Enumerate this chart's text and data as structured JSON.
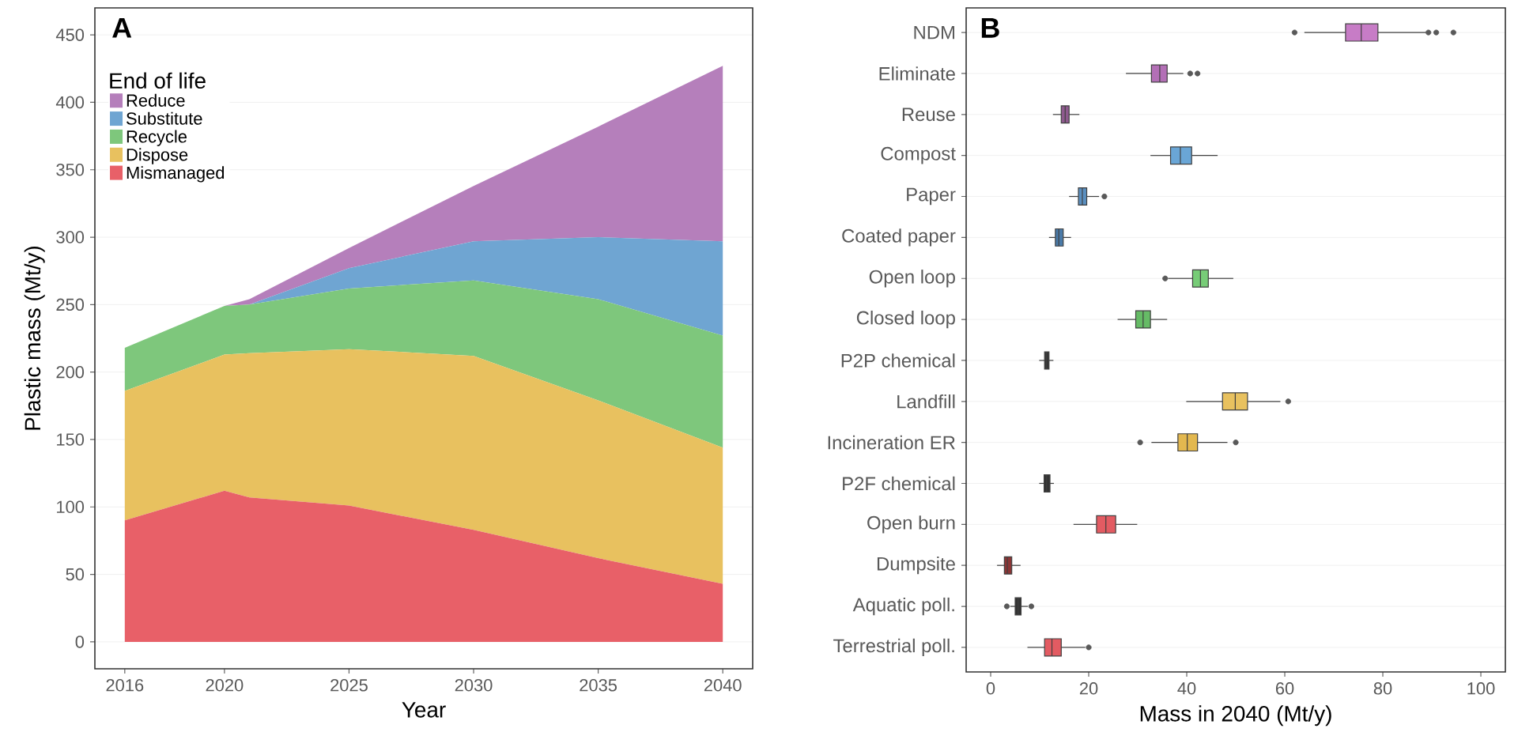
{
  "chart_data": [
    {
      "type": "area",
      "title": "A",
      "stacked": true,
      "xlabel": "Year",
      "ylabel": "Plastic mass (Mt/y)",
      "legend_title": "End of life",
      "legend": "top left",
      "grid": "y",
      "x": [
        2016,
        2020,
        2021,
        2025,
        2030,
        2035,
        2040
      ],
      "xlim": [
        2014.8,
        2041.2
      ],
      "xticks": [
        2016,
        2020,
        2025,
        2030,
        2035,
        2040
      ],
      "ylim": [
        -20,
        470
      ],
      "yticks": [
        0,
        50,
        100,
        150,
        200,
        250,
        300,
        350,
        400,
        450
      ],
      "series": [
        {
          "name": "Mismanaged",
          "color": "#e86068",
          "values": [
            90,
            112,
            107,
            101,
            83,
            62,
            43
          ]
        },
        {
          "name": "Dispose",
          "color": "#e8c15f",
          "values": [
            96,
            101,
            107,
            116,
            129,
            117,
            101
          ]
        },
        {
          "name": "Recycle",
          "color": "#7ec77c",
          "values": [
            32,
            36,
            36,
            45,
            56,
            75,
            83
          ]
        },
        {
          "name": "Substitute",
          "color": "#6fa5d2",
          "values": [
            0,
            0,
            0,
            15,
            29,
            46,
            70
          ]
        },
        {
          "name": "Reduce",
          "color": "#b57fbb",
          "values": [
            0,
            0,
            4,
            15,
            41,
            82,
            130
          ]
        }
      ]
    },
    {
      "type": "box",
      "title": "B",
      "orientation": "horizontal",
      "xlabel": "Mass in 2040 (Mt/y)",
      "grid": "y",
      "xlim": [
        -5,
        105
      ],
      "xticks": [
        0,
        20,
        40,
        60,
        80,
        100
      ],
      "categories": [
        "NDM",
        "Eliminate",
        "Reuse",
        "Compost",
        "Paper",
        "Coated paper",
        "Open loop",
        "Closed loop",
        "P2P chemical",
        "Landfill",
        "Incineration ER",
        "P2F chemical",
        "Open burn",
        "Dumpsite",
        "Aquatic poll.",
        "Terrestrial poll."
      ],
      "colors": [
        "#c77cc6",
        "#b36fb6",
        "#8e5a8e",
        "#6aa6d6",
        "#5a8fc0",
        "#4a7aa8",
        "#77cc77",
        "#66bb66",
        "#333333",
        "#e8c15f",
        "#e3b84f",
        "#333333",
        "#e35b62",
        "#8b3535",
        "#333333",
        "#e35b62"
      ],
      "boxes": [
        {
          "low": 64,
          "q1": 72.4,
          "median": 75.6,
          "q3": 79,
          "high": 88.8,
          "outliers": [
            62,
            89.3,
            90.9,
            94.4
          ]
        },
        {
          "low": 27.6,
          "q1": 32.8,
          "median": 34.5,
          "q3": 36,
          "high": 39.3,
          "outliers": [
            40.7,
            42.2
          ]
        },
        {
          "low": 12.7,
          "q1": 14.4,
          "median": 15.2,
          "q3": 16,
          "high": 18.1
        },
        {
          "low": 32.6,
          "q1": 36.7,
          "median": 38.7,
          "q3": 41,
          "high": 46.3
        },
        {
          "low": 16,
          "q1": 17.9,
          "median": 18.7,
          "q3": 19.6,
          "high": 22.1,
          "outliers": [
            23.2
          ]
        },
        {
          "low": 11.9,
          "q1": 13.2,
          "median": 13.9,
          "q3": 14.8,
          "high": 16.4
        },
        {
          "low": 36.2,
          "q1": 41.2,
          "median": 42.8,
          "q3": 44.4,
          "high": 49.5,
          "outliers": [
            35.6
          ]
        },
        {
          "low": 25.9,
          "q1": 29.6,
          "median": 31.1,
          "q3": 32.6,
          "high": 36
        },
        {
          "low": 9.9,
          "q1": 11,
          "median": 11.4,
          "q3": 11.9,
          "high": 12.8
        },
        {
          "low": 39.9,
          "q1": 47.3,
          "median": 49.9,
          "q3": 52.4,
          "high": 59.1,
          "outliers": [
            60.7
          ]
        },
        {
          "low": 32.8,
          "q1": 38.2,
          "median": 40.1,
          "q3": 42.2,
          "high": 48.3,
          "outliers": [
            30.5,
            50
          ]
        },
        {
          "low": 9.9,
          "q1": 10.9,
          "median": 11.4,
          "q3": 12.1,
          "high": 12.9
        },
        {
          "low": 16.9,
          "q1": 21.6,
          "median": 23.5,
          "q3": 25.5,
          "high": 29.9
        },
        {
          "low": 1.3,
          "q1": 2.8,
          "median": 3.4,
          "q3": 4.3,
          "high": 6.1
        },
        {
          "low": 4,
          "q1": 5,
          "median": 5.6,
          "q3": 6.2,
          "high": 7.6,
          "outliers": [
            3.3,
            8.3
          ]
        },
        {
          "low": 7.5,
          "q1": 11,
          "median": 12.5,
          "q3": 14.4,
          "high": 19.3,
          "outliers": [
            20
          ]
        }
      ]
    }
  ]
}
